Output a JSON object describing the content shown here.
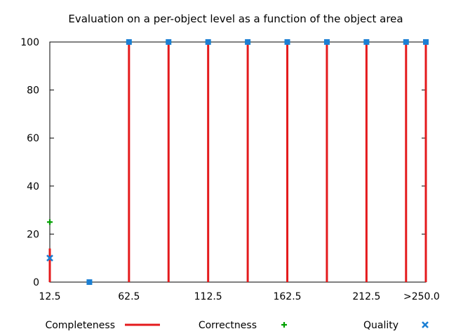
{
  "chart_data": {
    "type": "bar",
    "title": "Evaluation on a per-object level as a function of the object area",
    "xlabel": "",
    "ylabel": "",
    "xlim": [
      12.5,
      250
    ],
    "ylim": [
      0,
      100
    ],
    "x_ticks": [
      {
        "value": 12.5,
        "label": "12.5"
      },
      {
        "value": 62.5,
        "label": "62.5"
      },
      {
        "value": 112.5,
        "label": "112.5"
      },
      {
        "value": 162.5,
        "label": "162.5"
      },
      {
        "value": 212.5,
        "label": "212.5"
      },
      {
        "value": 250,
        "label": ">250.0"
      }
    ],
    "y_ticks": [
      0,
      20,
      40,
      60,
      80,
      100
    ],
    "x": [
      12.5,
      37.5,
      62.5,
      87.5,
      112.5,
      137.5,
      162.5,
      187.5,
      212.5,
      237.5,
      250
    ],
    "series": [
      {
        "name": "Completeness",
        "style": "impulses",
        "color": "#e41a1c",
        "values": [
          14,
          0,
          100,
          100,
          100,
          100,
          100,
          100,
          100,
          100,
          100
        ]
      },
      {
        "name": "Correctness",
        "style": "points-plus",
        "color": "#00a000",
        "values": [
          25,
          0,
          100,
          100,
          100,
          100,
          100,
          100,
          100,
          100,
          100
        ]
      },
      {
        "name": "Quality",
        "style": "points-x",
        "color": "#1b7fd4",
        "values": [
          10,
          0,
          100,
          100,
          100,
          100,
          100,
          100,
          100,
          100,
          100
        ]
      }
    ],
    "grid": false,
    "legend_position": "bottom"
  }
}
